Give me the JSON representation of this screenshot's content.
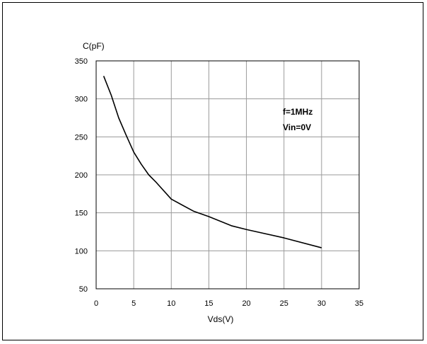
{
  "chart_data": {
    "type": "line",
    "title": "",
    "xlabel": "Vds(V)",
    "ylabel": "C(pF)",
    "xlim": [
      0,
      35
    ],
    "ylim": [
      50,
      350
    ],
    "xticks": [
      0,
      5,
      10,
      15,
      20,
      25,
      30,
      35
    ],
    "yticks": [
      50,
      100,
      150,
      200,
      250,
      300,
      350
    ],
    "grid": true,
    "annotations": [
      "f=1MHz",
      "Vin=0V"
    ],
    "series": [
      {
        "x": [
          1,
          2,
          3,
          4,
          5,
          6,
          7,
          8,
          10,
          13,
          15,
          18,
          20,
          25,
          30
        ],
        "y": [
          330,
          305,
          275,
          252,
          230,
          214,
          200,
          190,
          168,
          152,
          145,
          133,
          128,
          117,
          104
        ],
        "color": "#000000"
      }
    ]
  }
}
